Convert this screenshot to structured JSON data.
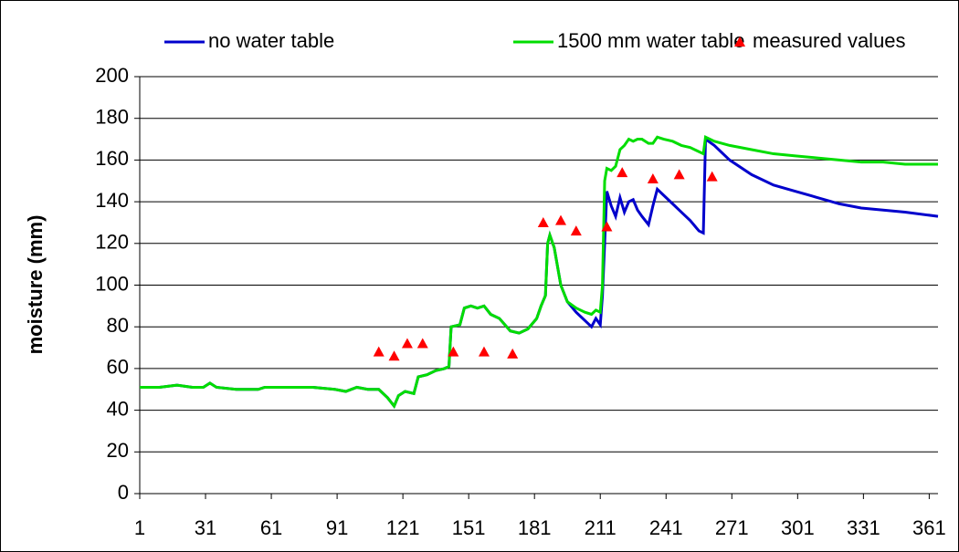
{
  "chart_data": {
    "type": "line",
    "y_label": "moisture (mm)",
    "xlim": [
      1,
      365
    ],
    "xticks": [
      1,
      31,
      61,
      91,
      121,
      151,
      181,
      211,
      241,
      271,
      301,
      331,
      361
    ],
    "ylim": [
      0,
      200
    ],
    "yticks": [
      0,
      20,
      40,
      60,
      80,
      100,
      120,
      140,
      160,
      180,
      200
    ],
    "grid": true,
    "legend": "top",
    "x": [
      1,
      10,
      18,
      25,
      30,
      33,
      36,
      45,
      55,
      58,
      70,
      80,
      90,
      95,
      100,
      105,
      110,
      114,
      117,
      119,
      122,
      126,
      128,
      132,
      136,
      140,
      142,
      143,
      147,
      149,
      152,
      155,
      158,
      161,
      165,
      170,
      174,
      178,
      182,
      184,
      186,
      187,
      188,
      190,
      193,
      196,
      200,
      204,
      207,
      209,
      211,
      212,
      213,
      214,
      216,
      218,
      220,
      222,
      224,
      226,
      228,
      230,
      233,
      235,
      237,
      240,
      244,
      248,
      252,
      256,
      258,
      259,
      263,
      270,
      280,
      290,
      300,
      310,
      320,
      330,
      340,
      350,
      365
    ],
    "series": [
      {
        "name": "no water table",
        "color": "#0000cc",
        "values": [
          51,
          51,
          52,
          51,
          51,
          53,
          51,
          50,
          50,
          51,
          51,
          51,
          50,
          49,
          51,
          50,
          50,
          46,
          42,
          47,
          49,
          48,
          56,
          57,
          59,
          60,
          61,
          80,
          81,
          89,
          90,
          89,
          90,
          86,
          84,
          78,
          77,
          79,
          84,
          90,
          95,
          120,
          124,
          118,
          100,
          92,
          87,
          83,
          80,
          84,
          81,
          95,
          120,
          145,
          138,
          133,
          142,
          135,
          140,
          141,
          136,
          133,
          129,
          138,
          146,
          143,
          139,
          135,
          131,
          126,
          125,
          170,
          167,
          160,
          153,
          148,
          145,
          142,
          139,
          137,
          136,
          135,
          133
        ]
      },
      {
        "name": "1500 mm water table",
        "color": "#00dd00",
        "values": [
          51,
          51,
          52,
          51,
          51,
          53,
          51,
          50,
          50,
          51,
          51,
          51,
          50,
          49,
          51,
          50,
          50,
          46,
          42,
          47,
          49,
          48,
          56,
          57,
          59,
          60,
          61,
          80,
          81,
          89,
          90,
          89,
          90,
          86,
          84,
          78,
          77,
          79,
          84,
          90,
          95,
          120,
          124,
          118,
          100,
          92,
          89,
          87,
          86,
          88,
          87,
          100,
          150,
          156,
          155,
          157,
          165,
          167,
          170,
          169,
          170,
          170,
          168,
          168,
          171,
          170,
          169,
          167,
          166,
          164,
          163,
          171,
          169,
          167,
          165,
          163,
          162,
          161,
          160,
          159,
          159,
          158,
          158
        ]
      },
      {
        "name": "measured values",
        "color": "#ff0000",
        "type": "scatter",
        "marker": "triangle",
        "x": [
          110,
          117,
          123,
          130,
          144,
          158,
          171,
          185,
          193,
          200,
          214,
          221,
          235,
          247,
          262
        ],
        "values": [
          68,
          66,
          72,
          72,
          68,
          68,
          67,
          130,
          131,
          126,
          128,
          154,
          151,
          153,
          152
        ]
      }
    ]
  }
}
